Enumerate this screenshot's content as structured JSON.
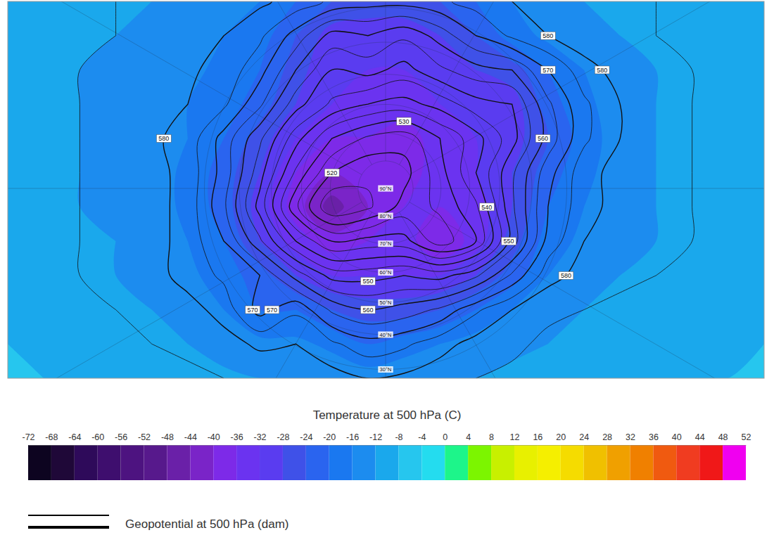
{
  "chart_data": {
    "type": "contour",
    "temperature": {
      "title": "Temperature at 500 hPa (C)",
      "values": [
        [
          -10,
          -10,
          -10,
          -11,
          -12,
          -13,
          -14,
          -16,
          -20,
          -24,
          -26,
          -26,
          -24,
          -20,
          -16,
          -14,
          -12,
          -11,
          -10,
          -10,
          -9,
          -9
        ],
        [
          -10,
          -10,
          -11,
          -12,
          -13,
          -14,
          -16,
          -18,
          -24,
          -30,
          -30,
          -30,
          -28,
          -24,
          -18,
          -15,
          -13,
          -12,
          -11,
          -10,
          -9,
          -9
        ],
        [
          -10,
          -11,
          -12,
          -13,
          -14,
          -15,
          -17,
          -20,
          -26,
          -32,
          -32,
          -32,
          -30,
          -28,
          -26,
          -20,
          -16,
          -13,
          -12,
          -11,
          -10,
          -9
        ],
        [
          -10,
          -11,
          -12,
          -13,
          -14,
          -16,
          -18,
          -22,
          -28,
          -32,
          -34,
          -34,
          -32,
          -30,
          -30,
          -22,
          -17,
          -14,
          -12,
          -11,
          -10,
          -9
        ],
        [
          -10,
          -11,
          -12,
          -13,
          -14,
          -16,
          -20,
          -26,
          -32,
          -36,
          -36,
          -38,
          -34,
          -32,
          -30,
          -24,
          -18,
          -14,
          -12,
          -11,
          -10,
          -9
        ],
        [
          -10,
          -11,
          -12,
          -13,
          -14,
          -17,
          -22,
          -28,
          -36,
          -40,
          -40,
          -38,
          -34,
          -32,
          -28,
          -22,
          -17,
          -14,
          -12,
          -11,
          -10,
          -9
        ],
        [
          -10,
          -11,
          -12,
          -13,
          -14,
          -17,
          -22,
          -30,
          -38,
          -46,
          -40,
          -36,
          -36,
          -34,
          -28,
          -20,
          -16,
          -13,
          -12,
          -11,
          -10,
          -9
        ],
        [
          -9,
          -10,
          -11,
          -12,
          -13,
          -16,
          -20,
          -28,
          -34,
          -38,
          -36,
          -34,
          -40,
          -34,
          -26,
          -18,
          -15,
          -13,
          -12,
          -11,
          -10,
          -9
        ],
        [
          -9,
          -10,
          -11,
          -12,
          -13,
          -15,
          -18,
          -22,
          -28,
          -32,
          -32,
          -32,
          -32,
          -28,
          -22,
          -16,
          -14,
          -12,
          -11,
          -10,
          -9,
          -9
        ],
        [
          -9,
          -9,
          -10,
          -11,
          -12,
          -14,
          -16,
          -20,
          -20,
          -24,
          -26,
          -26,
          -24,
          -20,
          -16,
          -14,
          -12,
          -11,
          -10,
          -10,
          -9,
          -9
        ],
        [
          -8,
          -9,
          -9,
          -10,
          -11,
          -12,
          -14,
          -15,
          -15,
          -17,
          -20,
          -18,
          -16,
          -14,
          -13,
          -12,
          -11,
          -10,
          -10,
          -9,
          -9,
          -8
        ],
        [
          -8,
          -8,
          -9,
          -9,
          -10,
          -10,
          -11,
          -12,
          -12,
          -13,
          -14,
          -13,
          -12,
          -12,
          -11,
          -10,
          -10,
          -9,
          -9,
          -8,
          -8,
          -8
        ]
      ],
      "colorbar": {
        "range": [
          -72,
          52
        ],
        "ticks": [
          -72,
          -68,
          -64,
          -60,
          -56,
          -52,
          -48,
          -44,
          -40,
          -36,
          -32,
          -28,
          -24,
          -20,
          -16,
          -12,
          -8,
          -4,
          0,
          4,
          8,
          12,
          16,
          20,
          24,
          28,
          32,
          36,
          40,
          44,
          48,
          52
        ],
        "colors": [
          "#0d0420",
          "#1f0838",
          "#2e0a5a",
          "#3e0e6e",
          "#4d1380",
          "#57198c",
          "#6a20a8",
          "#7a24c8",
          "#7d2ae8",
          "#6b33f0",
          "#5a3cf0",
          "#3f51e8",
          "#2a64ef",
          "#1a78f0",
          "#1c8cef",
          "#1aa8ec",
          "#26c6ee",
          "#24dcef",
          "#1df58a",
          "#7cf500",
          "#c8f000",
          "#e8f000",
          "#f5ef00",
          "#f5dc00",
          "#f0c000",
          "#f0a000",
          "#f08000",
          "#f05a10",
          "#f03c20",
          "#f01818",
          "#f000f0"
        ]
      }
    },
    "geopotential": {
      "title": "Geopotential at 500 hPa (dam)",
      "values": [
        [
          586,
          586,
          586,
          585,
          584,
          583,
          582,
          581,
          578,
          574,
          572,
          572,
          574,
          577,
          580,
          582,
          583,
          584,
          585,
          585,
          586,
          586
        ],
        [
          587,
          586,
          586,
          585,
          584,
          582,
          580,
          576,
          568,
          558,
          560,
          556,
          562,
          570,
          576,
          580,
          583,
          584,
          585,
          586,
          586,
          587
        ],
        [
          587,
          586,
          585,
          584,
          583,
          581,
          578,
          572,
          560,
          550,
          552,
          548,
          554,
          558,
          560,
          570,
          578,
          582,
          584,
          585,
          586,
          587
        ],
        [
          587,
          586,
          585,
          584,
          582,
          580,
          576,
          566,
          552,
          544,
          540,
          538,
          542,
          548,
          550,
          564,
          574,
          580,
          583,
          585,
          586,
          587
        ],
        [
          587,
          586,
          585,
          584,
          581,
          578,
          568,
          556,
          542,
          530,
          524,
          522,
          530,
          538,
          548,
          562,
          574,
          580,
          583,
          585,
          586,
          587
        ],
        [
          587,
          586,
          585,
          584,
          582,
          578,
          568,
          552,
          534,
          520,
          516,
          518,
          528,
          540,
          554,
          568,
          578,
          582,
          584,
          585,
          586,
          587
        ],
        [
          587,
          586,
          585,
          584,
          582,
          578,
          566,
          548,
          526,
          510,
          514,
          522,
          526,
          534,
          554,
          570,
          578,
          582,
          584,
          585,
          586,
          587
        ],
        [
          587,
          586,
          585,
          584,
          582,
          578,
          570,
          556,
          540,
          530,
          532,
          532,
          522,
          530,
          552,
          572,
          580,
          583,
          584,
          585,
          586,
          587
        ],
        [
          587,
          586,
          585,
          584,
          582,
          578,
          574,
          570,
          558,
          548,
          548,
          550,
          548,
          554,
          566,
          578,
          582,
          584,
          585,
          586,
          587,
          587
        ],
        [
          588,
          587,
          586,
          585,
          584,
          582,
          578,
          568,
          574,
          564,
          560,
          562,
          566,
          574,
          580,
          584,
          585,
          586,
          587,
          587,
          588,
          588
        ],
        [
          588,
          588,
          587,
          586,
          585,
          584,
          582,
          579,
          580,
          576,
          572,
          574,
          578,
          582,
          584,
          586,
          587,
          587,
          588,
          588,
          588,
          588
        ],
        [
          588,
          588,
          588,
          587,
          587,
          586,
          585,
          584,
          583,
          582,
          580,
          581,
          583,
          585,
          586,
          587,
          588,
          588,
          588,
          588,
          588,
          588
        ]
      ],
      "levels": [
        515,
        520,
        525,
        530,
        535,
        540,
        545,
        550,
        555,
        560,
        565,
        570,
        575,
        580,
        585
      ],
      "contour_labels": [
        580,
        570,
        560,
        550,
        550,
        570,
        580,
        520,
        530,
        580,
        540,
        580,
        560,
        570
      ]
    },
    "latitude_labels": [
      {
        "value": 90,
        "label": "90°N"
      },
      {
        "value": 80,
        "label": "80°N"
      },
      {
        "value": 70,
        "label": "70°N"
      },
      {
        "value": 60,
        "label": "60°N"
      },
      {
        "value": 50,
        "label": "50°N"
      },
      {
        "value": 40,
        "label": "40°N"
      },
      {
        "value": 30,
        "label": "30°N"
      }
    ]
  }
}
